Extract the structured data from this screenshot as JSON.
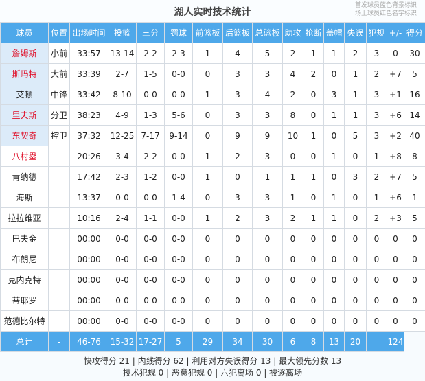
{
  "title": "湖人实时技术统计",
  "legend": [
    "首发球员蓝色背景标识",
    "场上球员红色名字标识"
  ],
  "colors": {
    "header_bg": "#4ea8ea",
    "starter_bg": "#dcebf9",
    "on_court_name": "#e0102a"
  },
  "columns": [
    "球员",
    "位置",
    "出场时间",
    "投篮",
    "三分",
    "罚球",
    "前篮板",
    "后篮板",
    "总篮板",
    "助攻",
    "抢断",
    "盖帽",
    "失误",
    "犯规",
    "+/-",
    "得分"
  ],
  "players": [
    {
      "name": "詹姆斯",
      "starter": true,
      "on_court": true,
      "cells": [
        "小前",
        "33:57",
        "13-14",
        "2-2",
        "2-3",
        "1",
        "4",
        "5",
        "2",
        "1",
        "1",
        "2",
        "3",
        "0",
        "30"
      ]
    },
    {
      "name": "斯玛特",
      "starter": true,
      "on_court": true,
      "cells": [
        "大前",
        "33:39",
        "2-7",
        "1-5",
        "0-0",
        "0",
        "3",
        "3",
        "4",
        "2",
        "0",
        "1",
        "2",
        "+7",
        "5"
      ]
    },
    {
      "name": "艾顿",
      "starter": true,
      "on_court": false,
      "cells": [
        "中锋",
        "33:42",
        "8-10",
        "0-0",
        "0-0",
        "1",
        "3",
        "4",
        "2",
        "0",
        "3",
        "1",
        "3",
        "+1",
        "16"
      ]
    },
    {
      "name": "里夫斯",
      "starter": true,
      "on_court": true,
      "cells": [
        "分卫",
        "38:23",
        "4-9",
        "1-3",
        "5-6",
        "0",
        "3",
        "3",
        "8",
        "0",
        "1",
        "1",
        "3",
        "+6",
        "14"
      ]
    },
    {
      "name": "东契奇",
      "starter": true,
      "on_court": true,
      "cells": [
        "控卫",
        "37:32",
        "12-25",
        "7-17",
        "9-14",
        "0",
        "9",
        "9",
        "10",
        "1",
        "0",
        "5",
        "3",
        "+2",
        "40"
      ]
    },
    {
      "name": "八村塁",
      "starter": false,
      "on_court": true,
      "cells": [
        "",
        "20:26",
        "3-4",
        "2-2",
        "0-0",
        "1",
        "2",
        "3",
        "0",
        "0",
        "1",
        "0",
        "1",
        "+8",
        "8"
      ]
    },
    {
      "name": "肯纳德",
      "starter": false,
      "on_court": false,
      "cells": [
        "",
        "17:42",
        "2-3",
        "1-2",
        "0-0",
        "1",
        "0",
        "1",
        "1",
        "1",
        "0",
        "3",
        "2",
        "+7",
        "5"
      ]
    },
    {
      "name": "海斯",
      "starter": false,
      "on_court": false,
      "cells": [
        "",
        "13:37",
        "0-0",
        "0-0",
        "1-4",
        "0",
        "3",
        "3",
        "1",
        "0",
        "1",
        "0",
        "1",
        "+6",
        "1"
      ]
    },
    {
      "name": "拉拉维亚",
      "starter": false,
      "on_court": false,
      "cells": [
        "",
        "10:16",
        "2-4",
        "1-1",
        "0-0",
        "1",
        "2",
        "3",
        "2",
        "1",
        "1",
        "0",
        "2",
        "+3",
        "5"
      ]
    },
    {
      "name": "巴夫金",
      "starter": false,
      "on_court": false,
      "cells": [
        "",
        "00:00",
        "0-0",
        "0-0",
        "0-0",
        "0",
        "0",
        "0",
        "0",
        "0",
        "0",
        "0",
        "0",
        "0",
        "0"
      ]
    },
    {
      "name": "布朗尼",
      "starter": false,
      "on_court": false,
      "cells": [
        "",
        "00:00",
        "0-0",
        "0-0",
        "0-0",
        "0",
        "0",
        "0",
        "0",
        "0",
        "0",
        "0",
        "0",
        "0",
        "0"
      ]
    },
    {
      "name": "克内克特",
      "starter": false,
      "on_court": false,
      "cells": [
        "",
        "00:00",
        "0-0",
        "0-0",
        "0-0",
        "0",
        "0",
        "0",
        "0",
        "0",
        "0",
        "0",
        "0",
        "0",
        "0"
      ]
    },
    {
      "name": "蒂耶罗",
      "starter": false,
      "on_court": false,
      "cells": [
        "",
        "00:00",
        "0-0",
        "0-0",
        "0-0",
        "0",
        "0",
        "0",
        "0",
        "0",
        "0",
        "0",
        "0",
        "0",
        "0"
      ]
    },
    {
      "name": "范德比尔特",
      "starter": false,
      "on_court": false,
      "cells": [
        "",
        "00:00",
        "0-0",
        "0-0",
        "0-0",
        "0",
        "0",
        "0",
        "0",
        "0",
        "0",
        "0",
        "0",
        "0",
        "0"
      ]
    }
  ],
  "total": {
    "label": "总计",
    "cells": [
      "",
      "-",
      "46-76",
      "15-32",
      "17-27",
      "5",
      "29",
      "34",
      "30",
      "6",
      "8",
      "13",
      "20",
      "",
      "124"
    ]
  },
  "footer": [
    "快攻得分 21 | 内线得分 62 | 利用对方失误得分 13 | 最大领先分数 13",
    "技术犯规 0 | 恶意犯规 0 | 六犯离场 0 | 被逐离场"
  ]
}
